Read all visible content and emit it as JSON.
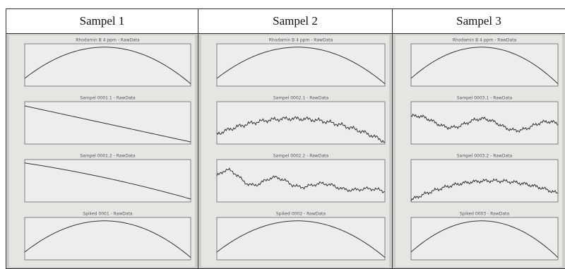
{
  "table": {
    "headers": [
      "Sampel 1",
      "Sampel 2",
      "Sampel 3"
    ],
    "panels": [
      [
        "Rhodamin B 4 ppm - RawData",
        "Sampel 0001.1 - RawData",
        "Sampel 0001.2 - RawData",
        "Spiked 0001 - RawData"
      ],
      [
        "Rhodamin B 4 ppm - RawData",
        "Sampel 0002.1 - RawData",
        "Sampel 0002.2 - RawData",
        "Spiked 0002 - RawData"
      ],
      [
        "Rhodamin B 4 ppm - RawData",
        "Sampel 0003.1 - RawData",
        "Sampel 0003.2 - RawData",
        "Spiked 0003 - RawData"
      ]
    ]
  }
}
